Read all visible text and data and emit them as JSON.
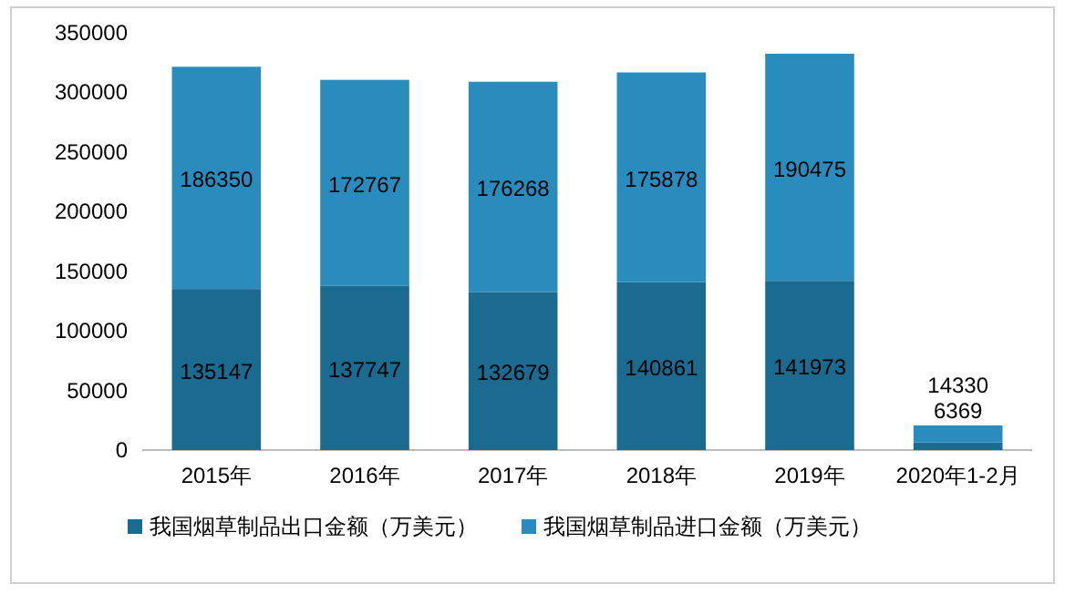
{
  "chart_data": {
    "type": "bar",
    "stacked": true,
    "categories": [
      "2015年",
      "2016年",
      "2017年",
      "2018年",
      "2019年",
      "2020年1-2月"
    ],
    "series": [
      {
        "name": "我国烟草制品出口金额（万美元）",
        "color": "#1b6a90",
        "values": [
          135147,
          137747,
          132679,
          140861,
          141973,
          6369
        ]
      },
      {
        "name": "我国烟草制品进口金额（万美元）",
        "color": "#2a8cbd",
        "values": [
          186350,
          172767,
          176268,
          175878,
          190475,
          14330
        ]
      }
    ],
    "ylim": [
      0,
      350000
    ],
    "yticks": [
      0,
      50000,
      100000,
      150000,
      200000,
      250000,
      300000,
      350000
    ],
    "data_labels": true,
    "legend": "bottom",
    "grid": false
  }
}
